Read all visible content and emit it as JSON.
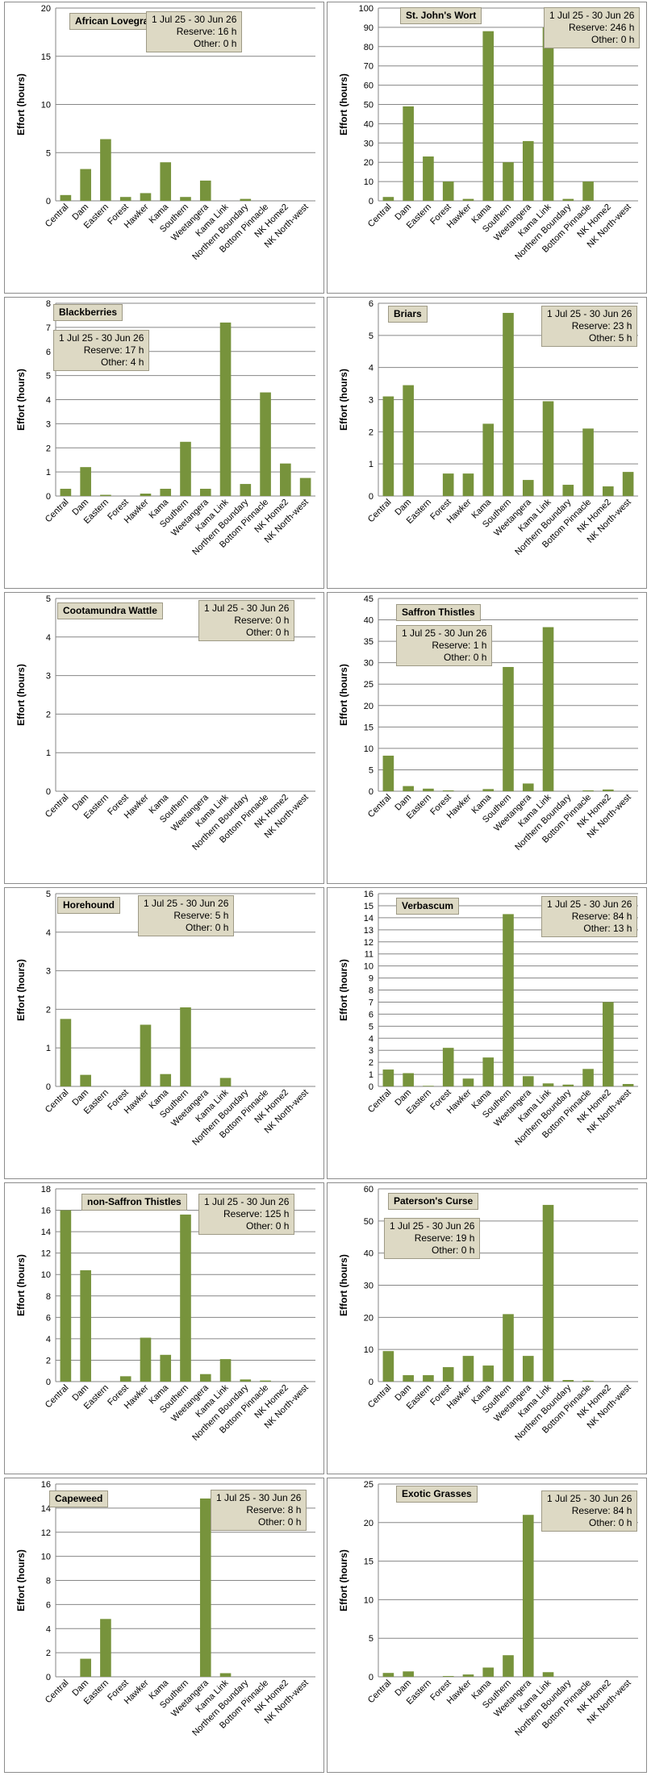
{
  "chart_data": [
    {
      "type": "bar",
      "title": "African Lovegrass",
      "date_range": "1 Jul 25  -  30 Jun 26",
      "reserve": "Reserve: 16 h",
      "other": "Other: 0 h",
      "ylabel": "Effort  (hours)",
      "ylim": [
        0,
        20
      ],
      "yticks": [
        0,
        5,
        10,
        15,
        20
      ],
      "categories": [
        "Central",
        "Dam",
        "Eastern",
        "Forest",
        "Hawker",
        "Kama",
        "Southern",
        "Weetangera",
        "Kama Link",
        "Northern Boundary",
        "Bottom Pinnacle",
        "NK Home2",
        "NK North-west"
      ],
      "values": [
        0.6,
        3.3,
        6.4,
        0.4,
        0.8,
        4.0,
        0.4,
        2.1,
        0,
        0.2,
        0,
        0,
        0
      ]
    },
    {
      "type": "bar",
      "title": "St. John's Wort",
      "date_range": "1 Jul 25  -  30 Jun 26",
      "reserve": "Reserve: 246 h",
      "other": "Other: 0 h",
      "ylabel": "Effort  (hours)",
      "ylim": [
        0,
        100
      ],
      "yticks": [
        0,
        10,
        20,
        30,
        40,
        50,
        60,
        70,
        80,
        90,
        100
      ],
      "categories": [
        "Central",
        "Dam",
        "Eastern",
        "Forest",
        "Hawker",
        "Kama",
        "Southern",
        "Weetangera",
        "Kama Link",
        "Northern Boundary",
        "Bottom Pinnacle",
        "NK Home2",
        "NK North-west"
      ],
      "values": [
        2,
        49,
        23,
        10,
        1,
        88,
        20,
        31,
        90,
        1,
        10,
        0,
        0
      ]
    },
    {
      "type": "bar",
      "title": "Blackberries",
      "date_range": "1 Jul 25  -  30 Jun 26",
      "reserve": "Reserve: 17 h",
      "other": "Other: 4 h",
      "ylabel": "Effort  (hours)",
      "ylim": [
        0,
        8
      ],
      "yticks": [
        0,
        1,
        2,
        3,
        4,
        5,
        6,
        7,
        8
      ],
      "categories": [
        "Central",
        "Dam",
        "Eastern",
        "Forest",
        "Hawker",
        "Kama",
        "Southern",
        "Weetangera",
        "Kama Link",
        "Northern Boundary",
        "Bottom Pinnacle",
        "NK Home2",
        "NK North-west"
      ],
      "values": [
        0.3,
        1.2,
        0.05,
        0,
        0.1,
        0.3,
        2.25,
        0.3,
        7.2,
        0.5,
        4.3,
        1.35,
        0.75
      ]
    },
    {
      "type": "bar",
      "title": "Briars",
      "date_range": "1 Jul 25  -  30 Jun 26",
      "reserve": "Reserve: 23 h",
      "other": "Other: 5 h",
      "ylabel": "Effort  (hours)",
      "ylim": [
        0,
        6
      ],
      "yticks": [
        0,
        1,
        2,
        3,
        4,
        5,
        6
      ],
      "categories": [
        "Central",
        "Dam",
        "Eastern",
        "Forest",
        "Hawker",
        "Kama",
        "Southern",
        "Weetangera",
        "Kama Link",
        "Northern Boundary",
        "Bottom Pinnacle",
        "NK Home2",
        "NK North-west"
      ],
      "values": [
        3.1,
        3.45,
        0,
        0.7,
        0.7,
        2.25,
        5.7,
        0.5,
        2.95,
        0.35,
        2.1,
        0.3,
        0.75
      ]
    },
    {
      "type": "bar",
      "title": "Cootamundra Wattle",
      "date_range": "1 Jul 25  -  30 Jun 26",
      "reserve": "Reserve: 0 h",
      "other": "Other: 0 h",
      "ylabel": "Effort  (hours)",
      "ylim": [
        0,
        5
      ],
      "yticks": [
        0,
        1,
        2,
        3,
        4,
        5
      ],
      "categories": [
        "Central",
        "Dam",
        "Eastern",
        "Forest",
        "Hawker",
        "Kama",
        "Southern",
        "Weetangera",
        "Kama Link",
        "Northern Boundary",
        "Bottom Pinnacle",
        "NK Home2",
        "NK North-west"
      ],
      "values": [
        0,
        0,
        0,
        0,
        0,
        0,
        0,
        0,
        0,
        0,
        0,
        0,
        0
      ]
    },
    {
      "type": "bar",
      "title": "Saffron Thistles",
      "date_range": "1 Jul 25  -  30 Jun 26",
      "reserve": "Reserve: 1 h",
      "other": "Other: 0 h",
      "ylabel": "Effort  (hours)",
      "ylim": [
        0,
        45
      ],
      "yticks": [
        0,
        5,
        10,
        15,
        20,
        25,
        30,
        35,
        40,
        45
      ],
      "categories": [
        "Central",
        "Dam",
        "Eastern",
        "Forest",
        "Hawker",
        "Kama",
        "Southern",
        "Weetangera",
        "Kama Link",
        "Northern Boundary",
        "Bottom Pinnacle",
        "NK Home2",
        "NK North-west"
      ],
      "values": [
        8.3,
        1.2,
        0.6,
        0.2,
        0,
        0.5,
        29,
        1.8,
        38.3,
        0,
        0.2,
        0.4,
        0
      ]
    },
    {
      "type": "bar",
      "title": "Horehound",
      "date_range": "1 Jul 25  -  30 Jun 26",
      "reserve": "Reserve: 5 h",
      "other": "Other: 0 h",
      "ylabel": "Effort  (hours)",
      "ylim": [
        0,
        5
      ],
      "yticks": [
        0,
        1,
        2,
        3,
        4,
        5
      ],
      "categories": [
        "Central",
        "Dam",
        "Eastern",
        "Forest",
        "Hawker",
        "Kama",
        "Southern",
        "Weetangera",
        "Kama Link",
        "Northern Boundary",
        "Bottom Pinnacle",
        "NK Home2",
        "NK North-west"
      ],
      "values": [
        1.75,
        0.3,
        0,
        0,
        1.6,
        0.32,
        2.05,
        0,
        0.22,
        0,
        0,
        0,
        0
      ]
    },
    {
      "type": "bar",
      "title": "Verbascum",
      "date_range": "1 Jul 25  -  30 Jun 26",
      "reserve": "Reserve: 84 h",
      "other": "Other: 13 h",
      "ylabel": "Effort  (hours)",
      "ylim": [
        0,
        16
      ],
      "yticks": [
        0,
        1,
        2,
        3,
        4,
        5,
        6,
        7,
        8,
        9,
        10,
        11,
        12,
        13,
        14,
        15,
        16
      ],
      "categories": [
        "Central",
        "Dam",
        "Eastern",
        "Forest",
        "Hawker",
        "Kama",
        "Southern",
        "Weetangera",
        "Kama Link",
        "Northern Boundary",
        "Bottom Pinnacle",
        "NK Home2",
        "NK North-west"
      ],
      "values": [
        1.4,
        1.1,
        0.05,
        3.2,
        0.65,
        2.4,
        14.3,
        0.85,
        0.25,
        0.15,
        1.45,
        7.0,
        0.2
      ]
    },
    {
      "type": "bar",
      "title": "non-Saffron Thistles",
      "date_range": "1 Jul 25  -  30 Jun 26",
      "reserve": "Reserve: 125 h",
      "other": "Other: 0 h",
      "ylabel": "Effort  (hours)",
      "ylim": [
        0,
        18
      ],
      "yticks": [
        0,
        2,
        4,
        6,
        8,
        10,
        12,
        14,
        16,
        18
      ],
      "categories": [
        "Central",
        "Dam",
        "Eastern",
        "Forest",
        "Hawker",
        "Kama",
        "Southern",
        "Weetangera",
        "Kama Link",
        "Northern Boundary",
        "Bottom Pinnacle",
        "NK Home2",
        "NK North-west"
      ],
      "values": [
        16,
        10.4,
        0,
        0.5,
        4.1,
        2.5,
        15.6,
        0.7,
        2.1,
        0.2,
        0.1,
        0,
        0
      ]
    },
    {
      "type": "bar",
      "title": "Paterson's Curse",
      "date_range": "1 Jul 25  -  30 Jun 26",
      "reserve": "Reserve: 19 h",
      "other": "Other: 0 h",
      "ylabel": "Effort  (hours)",
      "ylim": [
        0,
        60
      ],
      "yticks": [
        0,
        10,
        20,
        30,
        40,
        50,
        60
      ],
      "categories": [
        "Central",
        "Dam",
        "Eastern",
        "Forest",
        "Hawker",
        "Kama",
        "Southern",
        "Weetangera",
        "Kama Link",
        "Northern Boundary",
        "Bottom Pinnacle",
        "NK Home2",
        "NK North-west"
      ],
      "values": [
        9.5,
        2,
        2,
        4.5,
        8,
        5,
        21,
        8,
        55,
        0.5,
        0.3,
        0,
        0
      ]
    },
    {
      "type": "bar",
      "title": "Capeweed",
      "date_range": "1 Jul 25  -  30 Jun 26",
      "reserve": "Reserve: 8 h",
      "other": "Other: 0 h",
      "ylabel": "Effort  (hours)",
      "ylim": [
        0,
        16
      ],
      "yticks": [
        0,
        2,
        4,
        6,
        8,
        10,
        12,
        14,
        16
      ],
      "categories": [
        "Central",
        "Dam",
        "Eastern",
        "Forest",
        "Hawker",
        "Kama",
        "Southern",
        "Weetangera",
        "Kama Link",
        "Northern Boundary",
        "Bottom Pinnacle",
        "NK Home2",
        "NK North-west"
      ],
      "values": [
        0,
        1.5,
        4.8,
        0,
        0,
        0,
        0,
        14.8,
        0.3,
        0,
        0,
        0,
        0
      ]
    },
    {
      "type": "bar",
      "title": "Exotic Grasses",
      "date_range": "1 Jul 25  -  30 Jun 26",
      "reserve": "Reserve: 84 h",
      "other": "Other: 0 h",
      "ylabel": "Effort  (hours)",
      "ylim": [
        0,
        25
      ],
      "yticks": [
        0,
        5,
        10,
        15,
        20,
        25
      ],
      "categories": [
        "Central",
        "Dam",
        "Eastern",
        "Forest",
        "Hawker",
        "Kama",
        "Southern",
        "Weetangera",
        "Kama Link",
        "Northern Boundary",
        "Bottom Pinnacle",
        "NK Home2",
        "NK North-west"
      ],
      "values": [
        0.5,
        0.7,
        0,
        0.1,
        0.3,
        1.2,
        2.8,
        21,
        0.6,
        0,
        0,
        0,
        0
      ]
    }
  ],
  "colors": {
    "bar": "#77933c",
    "grid": "#868686",
    "box": "#ddd9c4"
  }
}
